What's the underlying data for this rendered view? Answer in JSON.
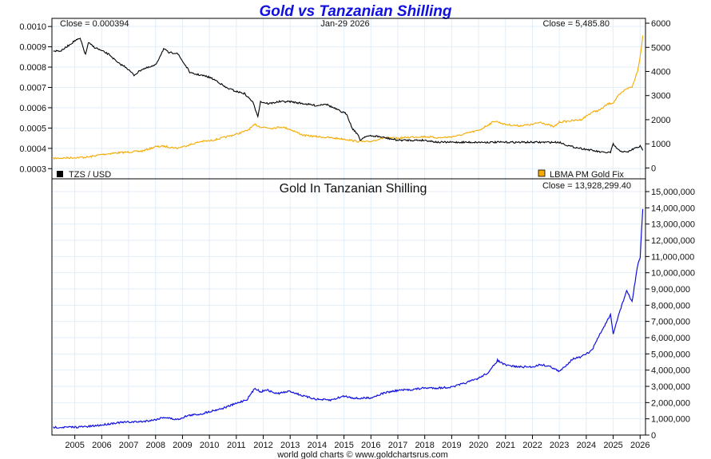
{
  "chart_data": [
    {
      "panel": "top",
      "type": "line",
      "title": "Gold vs Tanzanian Shilling",
      "date_label": "Jan-29  2026",
      "left_close_label": "Close = 0.000394",
      "right_close_label": "Close = 5,485.80",
      "left_axis": {
        "ylim": [
          0.00025,
          0.00104
        ],
        "ticks": [
          "0.0010",
          "0.0009",
          "0.0008",
          "0.0007",
          "0.0006",
          "0.0005",
          "0.0004",
          "0.0003"
        ],
        "tick_values": [
          0.001,
          0.0009,
          0.0008,
          0.0007,
          0.0006,
          0.0005,
          0.0004,
          0.0003
        ]
      },
      "right_axis": {
        "ylim": [
          -450,
          6200
        ],
        "ticks": [
          "6000",
          "5000",
          "4000",
          "3000",
          "2000",
          "1000",
          "0"
        ],
        "tick_values": [
          6000,
          5000,
          4000,
          3000,
          2000,
          1000,
          0
        ]
      },
      "legend": [
        {
          "label": "TZS / USD",
          "color": "#000000",
          "position": "bottom-left"
        },
        {
          "label": "LBMA PM Gold Fix",
          "color": "#f5aa00",
          "position": "bottom-right"
        }
      ],
      "grid": true,
      "series": [
        {
          "name": "TZS / USD",
          "axis": "left",
          "color": "#000000",
          "x": [
            2004.2,
            2004.5,
            2004.8,
            2005.0,
            2005.2,
            2005.4,
            2005.5,
            2005.7,
            2006.0,
            2006.3,
            2006.6,
            2006.9,
            2007.2,
            2007.5,
            2007.8,
            2008.0,
            2008.3,
            2008.5,
            2008.8,
            2009.0,
            2009.3,
            2009.7,
            2010.0,
            2010.3,
            2010.6,
            2011.0,
            2011.3,
            2011.6,
            2011.8,
            2011.9,
            2012.2,
            2012.6,
            2013.0,
            2013.5,
            2014.0,
            2014.3,
            2014.6,
            2014.9,
            2015.1,
            2015.3,
            2015.5,
            2015.6,
            2015.8,
            2016.2,
            2016.6,
            2017.0,
            2017.5,
            2018.0,
            2018.5,
            2019.0,
            2019.5,
            2020.0,
            2021.0,
            2022.0,
            2023.0,
            2023.4,
            2023.8,
            2024.2,
            2024.6,
            2024.9,
            2025.0,
            2025.2,
            2025.5,
            2025.8,
            2026.0,
            2026.1
          ],
          "y": [
            0.00088,
            0.00088,
            0.00091,
            0.00093,
            0.00094,
            0.00086,
            0.00092,
            0.0009,
            0.00088,
            0.00086,
            0.00082,
            0.0008,
            0.00076,
            0.00079,
            0.0008,
            0.00081,
            0.00089,
            0.00087,
            0.00087,
            0.00083,
            0.00077,
            0.00076,
            0.00075,
            0.00073,
            0.0007,
            0.00068,
            0.00067,
            0.00063,
            0.00056,
            0.00063,
            0.00062,
            0.00063,
            0.00063,
            0.00062,
            0.00061,
            0.00062,
            0.0006,
            0.00058,
            0.00057,
            0.0005,
            0.00047,
            0.00044,
            0.00046,
            0.00046,
            0.00045,
            0.00044,
            0.00044,
            0.00044,
            0.00043,
            0.00043,
            0.00043,
            0.00043,
            0.00043,
            0.00043,
            0.00043,
            0.00041,
            0.0004,
            0.00039,
            0.00038,
            0.00038,
            0.00042,
            0.00039,
            0.00038,
            0.0004,
            0.00041,
            0.00039
          ]
        },
        {
          "name": "LBMA PM Gold Fix",
          "axis": "right",
          "color": "#f5aa00",
          "x": [
            2004.2,
            2005.0,
            2005.5,
            2006.0,
            2006.5,
            2007.0,
            2007.5,
            2008.0,
            2008.3,
            2008.8,
            2009.2,
            2009.7,
            2010.0,
            2010.5,
            2011.0,
            2011.4,
            2011.7,
            2011.9,
            2012.3,
            2012.7,
            2013.0,
            2013.5,
            2014.0,
            2014.5,
            2015.0,
            2015.5,
            2015.9,
            2016.5,
            2017.0,
            2017.5,
            2018.0,
            2018.5,
            2018.9,
            2019.3,
            2019.7,
            2020.0,
            2020.6,
            2021.0,
            2021.5,
            2022.0,
            2022.3,
            2022.8,
            2023.0,
            2023.4,
            2023.8,
            2024.2,
            2024.5,
            2024.8,
            2025.0,
            2025.2,
            2025.5,
            2025.7,
            2025.9,
            2026.0,
            2026.1
          ],
          "y": [
            400,
            430,
            450,
            560,
            620,
            660,
            700,
            880,
            900,
            820,
            940,
            1100,
            1120,
            1250,
            1400,
            1550,
            1800,
            1700,
            1650,
            1700,
            1600,
            1350,
            1300,
            1250,
            1200,
            1100,
            1080,
            1250,
            1230,
            1280,
            1300,
            1250,
            1280,
            1350,
            1480,
            1550,
            1950,
            1800,
            1750,
            1800,
            1900,
            1700,
            1900,
            1950,
            2000,
            2300,
            2400,
            2650,
            2700,
            3000,
            3300,
            3350,
            4000,
            4600,
            5486
          ]
        }
      ]
    },
    {
      "panel": "bottom",
      "type": "line",
      "title": "Gold In Tanzanian Shilling",
      "close_label": "Close = 13,928,299.40",
      "xlabel": "",
      "ylabel": "",
      "ylim": [
        0,
        15000000
      ],
      "ticks": [
        "15,000,000",
        "14,000,000",
        "13,000,000",
        "12,000,000",
        "11,000,000",
        "10,000,000",
        "9,000,000",
        "8,000,000",
        "7,000,000",
        "6,000,000",
        "5,000,000",
        "4,000,000",
        "3,000,000",
        "2,000,000",
        "1,000,000",
        "0"
      ],
      "tick_values": [
        15000000,
        14000000,
        13000000,
        12000000,
        11000000,
        10000000,
        9000000,
        8000000,
        7000000,
        6000000,
        5000000,
        4000000,
        3000000,
        2000000,
        1000000,
        0
      ],
      "grid": true,
      "series": [
        {
          "name": "Gold In Tanzanian Shilling",
          "color": "#1010e0",
          "x": [
            2004.2,
            2004.8,
            2005.5,
            2006.0,
            2006.5,
            2007.0,
            2007.5,
            2008.0,
            2008.3,
            2008.8,
            2009.2,
            2009.7,
            2010.0,
            2010.5,
            2011.0,
            2011.4,
            2011.7,
            2011.9,
            2012.1,
            2012.5,
            2013.0,
            2013.5,
            2014.0,
            2014.5,
            2015.0,
            2015.5,
            2016.0,
            2016.5,
            2017.0,
            2017.5,
            2018.0,
            2018.5,
            2019.0,
            2019.5,
            2020.0,
            2020.4,
            2020.7,
            2021.0,
            2021.5,
            2022.0,
            2022.3,
            2022.7,
            2023.0,
            2023.5,
            2023.8,
            2024.2,
            2024.5,
            2024.9,
            2025.0,
            2025.2,
            2025.5,
            2025.7,
            2025.9,
            2026.0,
            2026.1
          ],
          "y": [
            480000,
            480000,
            520000,
            620000,
            750000,
            800000,
            830000,
            950000,
            1100000,
            950000,
            1200000,
            1300000,
            1450000,
            1650000,
            1950000,
            2200000,
            2900000,
            2650000,
            2800000,
            2550000,
            2700000,
            2400000,
            2200000,
            2150000,
            2400000,
            2250000,
            2300000,
            2600000,
            2750000,
            2800000,
            2900000,
            2900000,
            2950000,
            3200000,
            3500000,
            3900000,
            4600000,
            4300000,
            4200000,
            4200000,
            4350000,
            4200000,
            3900000,
            4700000,
            4800000,
            5200000,
            6200000,
            7400000,
            6200000,
            7400000,
            8900000,
            8200000,
            10400000,
            10900000,
            13928299
          ]
        }
      ]
    }
  ],
  "x_axis": {
    "xlim": [
      2004.15,
      2026.2
    ],
    "ticks": [
      "2005",
      "2006",
      "2007",
      "2008",
      "2009",
      "2010",
      "2011",
      "2012",
      "2013",
      "2014",
      "2015",
      "2016",
      "2017",
      "2018",
      "2019",
      "2020",
      "2021",
      "2022",
      "2023",
      "2024",
      "2025",
      "2026"
    ],
    "tick_values": [
      2005,
      2006,
      2007,
      2008,
      2009,
      2010,
      2011,
      2012,
      2013,
      2014,
      2015,
      2016,
      2017,
      2018,
      2019,
      2020,
      2021,
      2022,
      2023,
      2024,
      2025,
      2026
    ]
  },
  "footer": "world gold charts © www.goldchartsrus.com"
}
